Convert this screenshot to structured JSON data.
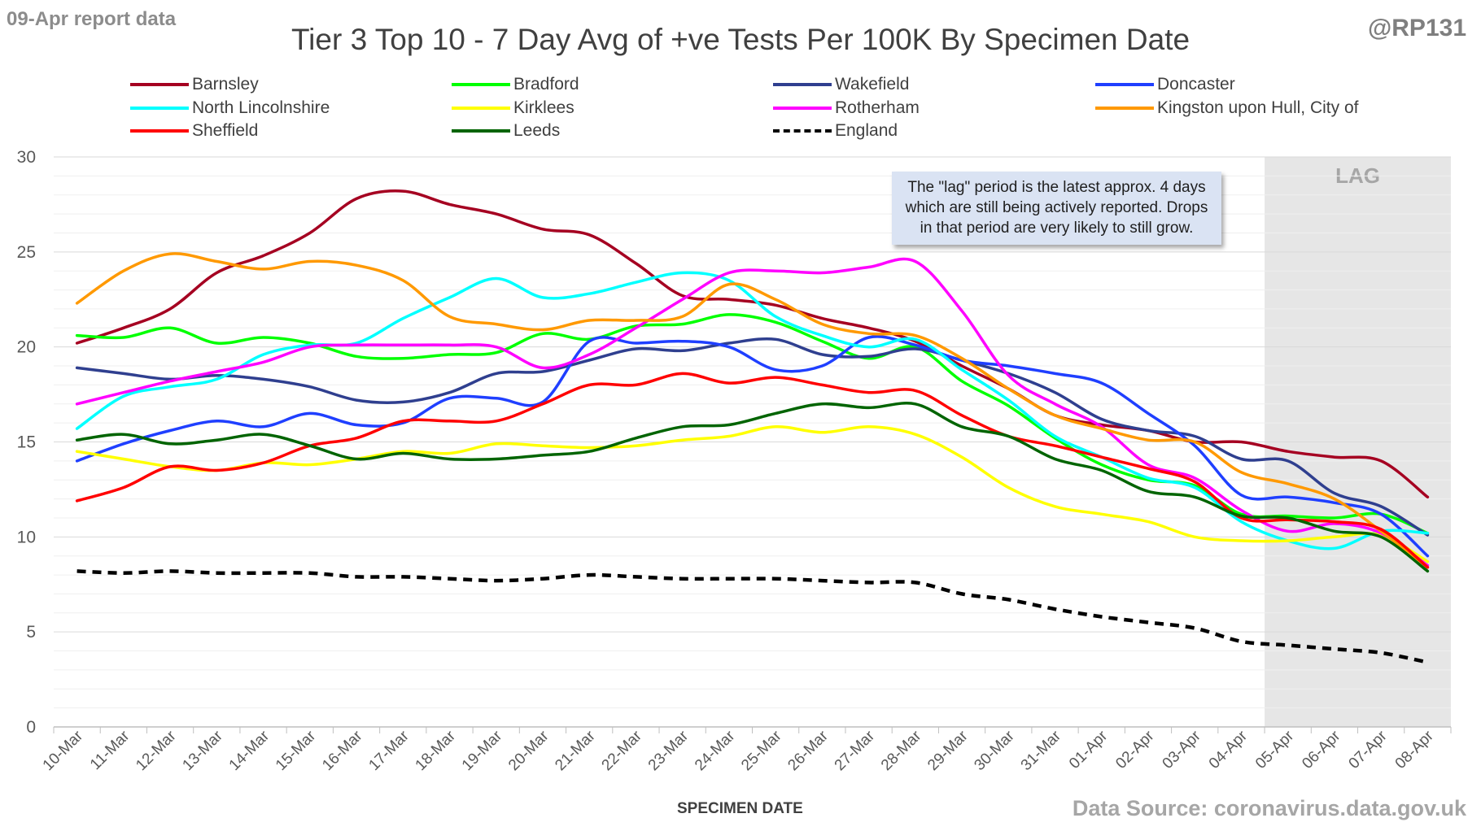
{
  "header": {
    "report_label": "09-Apr report data",
    "handle": "@RP131"
  },
  "footer": {
    "source": "Data Source: coronavirus.data.gov.uk"
  },
  "note": {
    "text": "The \"lag\" period is the latest approx. 4 days which are still being actively reported.  Drops in that period are very likely to still grow."
  },
  "chart_data": {
    "type": "line",
    "title": "Tier 3 Top 10 - 7 Day Avg of +ve Tests Per 100K By Specimen Date",
    "xlabel": "SPECIMEN DATE",
    "ylabel": "",
    "ylim": [
      0,
      30
    ],
    "yticks": [
      0,
      5,
      10,
      15,
      20,
      25,
      30
    ],
    "grid": true,
    "legend_position": "top",
    "lag_label": "LAG",
    "lag_start": "05-Apr",
    "categories": [
      "10-Mar",
      "11-Mar",
      "12-Mar",
      "13-Mar",
      "14-Mar",
      "15-Mar",
      "16-Mar",
      "17-Mar",
      "18-Mar",
      "19-Mar",
      "20-Mar",
      "21-Mar",
      "22-Mar",
      "23-Mar",
      "24-Mar",
      "25-Mar",
      "26-Mar",
      "27-Mar",
      "28-Mar",
      "29-Mar",
      "30-Mar",
      "31-Mar",
      "01-Apr",
      "02-Apr",
      "03-Apr",
      "04-Apr",
      "05-Apr",
      "06-Apr",
      "07-Apr",
      "08-Apr"
    ],
    "series": [
      {
        "name": "Barnsley",
        "color": "#a50021",
        "dash": false,
        "values": [
          20.2,
          21.0,
          22.0,
          23.9,
          24.8,
          26.0,
          27.8,
          28.2,
          27.5,
          27.0,
          26.2,
          25.9,
          24.4,
          22.7,
          22.5,
          22.2,
          21.5,
          21.0,
          20.3,
          19.0,
          17.8,
          16.4,
          15.9,
          15.6,
          15.0,
          15.0,
          14.5,
          14.2,
          14.0,
          12.1
        ]
      },
      {
        "name": "Bradford",
        "color": "#00ff00",
        "dash": false,
        "values": [
          20.6,
          20.5,
          21.0,
          20.2,
          20.5,
          20.2,
          19.5,
          19.4,
          19.6,
          19.7,
          20.7,
          20.4,
          21.1,
          21.2,
          21.7,
          21.3,
          20.3,
          19.4,
          20.0,
          18.2,
          16.9,
          15.2,
          13.8,
          13.0,
          12.7,
          11.2,
          11.1,
          11.0,
          11.2,
          10.2
        ]
      },
      {
        "name": "Wakefield",
        "color": "#2f3f8f",
        "dash": false,
        "values": [
          18.9,
          18.6,
          18.3,
          18.5,
          18.3,
          17.9,
          17.2,
          17.1,
          17.6,
          18.6,
          18.7,
          19.3,
          19.9,
          19.8,
          20.2,
          20.4,
          19.6,
          19.5,
          19.9,
          19.3,
          18.6,
          17.6,
          16.2,
          15.6,
          15.3,
          14.1,
          14.0,
          12.3,
          11.6,
          10.1
        ]
      },
      {
        "name": "Doncaster",
        "color": "#1f3fff",
        "dash": false,
        "values": [
          14.0,
          14.9,
          15.6,
          16.1,
          15.8,
          16.5,
          15.9,
          16.0,
          17.3,
          17.3,
          17.1,
          20.3,
          20.2,
          20.3,
          20.0,
          18.8,
          19.0,
          20.5,
          20.1,
          19.3,
          19.0,
          18.6,
          18.1,
          16.5,
          14.8,
          12.2,
          12.1,
          11.8,
          11.2,
          9.0
        ]
      },
      {
        "name": "North Lincolnshire",
        "color": "#00ffff",
        "dash": false,
        "values": [
          15.7,
          17.4,
          17.9,
          18.3,
          19.6,
          20.1,
          20.2,
          21.5,
          22.6,
          23.6,
          22.6,
          22.8,
          23.4,
          23.9,
          23.5,
          21.6,
          20.6,
          20.0,
          20.4,
          18.8,
          17.2,
          15.3,
          14.2,
          13.1,
          12.6,
          10.8,
          9.8,
          9.4,
          10.3,
          10.2
        ]
      },
      {
        "name": "Kirklees",
        "color": "#ffff00",
        "dash": false,
        "values": [
          14.5,
          14.1,
          13.7,
          13.5,
          13.9,
          13.8,
          14.1,
          14.5,
          14.4,
          14.9,
          14.8,
          14.7,
          14.8,
          15.1,
          15.3,
          15.8,
          15.5,
          15.8,
          15.4,
          14.2,
          12.6,
          11.6,
          11.2,
          10.8,
          10.0,
          9.8,
          9.8,
          10.0,
          10.1,
          8.7
        ]
      },
      {
        "name": "Rotherham",
        "color": "#ff00ff",
        "dash": false,
        "values": [
          17.0,
          17.6,
          18.2,
          18.7,
          19.2,
          20.0,
          20.1,
          20.1,
          20.1,
          20.0,
          18.9,
          19.6,
          21.0,
          22.5,
          23.9,
          24.0,
          23.9,
          24.2,
          24.5,
          21.9,
          18.5,
          17.0,
          15.8,
          13.8,
          13.1,
          11.4,
          10.3,
          10.7,
          10.2,
          8.5
        ]
      },
      {
        "name": "Kingston upon Hull, City of",
        "color": "#ff9900",
        "dash": false,
        "values": [
          22.3,
          24.0,
          24.9,
          24.5,
          24.1,
          24.5,
          24.3,
          23.5,
          21.6,
          21.2,
          20.9,
          21.4,
          21.4,
          21.6,
          23.3,
          22.5,
          21.2,
          20.7,
          20.6,
          19.4,
          17.8,
          16.4,
          15.7,
          15.1,
          15.0,
          13.4,
          12.8,
          12.0,
          10.3,
          8.4
        ]
      },
      {
        "name": "Sheffield",
        "color": "#ff0000",
        "dash": false,
        "values": [
          11.9,
          12.6,
          13.7,
          13.5,
          13.9,
          14.8,
          15.2,
          16.1,
          16.1,
          16.1,
          17.0,
          18.0,
          18.0,
          18.6,
          18.1,
          18.4,
          18.0,
          17.6,
          17.7,
          16.4,
          15.3,
          14.8,
          14.2,
          13.6,
          12.9,
          11.0,
          10.9,
          10.8,
          10.4,
          8.4
        ]
      },
      {
        "name": "Leeds",
        "color": "#006400",
        "dash": false,
        "values": [
          15.1,
          15.4,
          14.9,
          15.1,
          15.4,
          14.8,
          14.1,
          14.4,
          14.1,
          14.1,
          14.3,
          14.5,
          15.2,
          15.8,
          15.9,
          16.5,
          17.0,
          16.8,
          17.0,
          15.8,
          15.3,
          14.1,
          13.5,
          12.4,
          12.1,
          11.1,
          11.0,
          10.3,
          10.0,
          8.2
        ]
      },
      {
        "name": "England",
        "color": "#000000",
        "dash": true,
        "values": [
          8.2,
          8.1,
          8.2,
          8.1,
          8.1,
          8.1,
          7.9,
          7.9,
          7.8,
          7.7,
          7.8,
          8.0,
          7.9,
          7.8,
          7.8,
          7.8,
          7.7,
          7.6,
          7.6,
          7.0,
          6.7,
          6.2,
          5.8,
          5.5,
          5.2,
          4.5,
          4.3,
          4.1,
          3.9,
          3.4
        ]
      }
    ]
  }
}
